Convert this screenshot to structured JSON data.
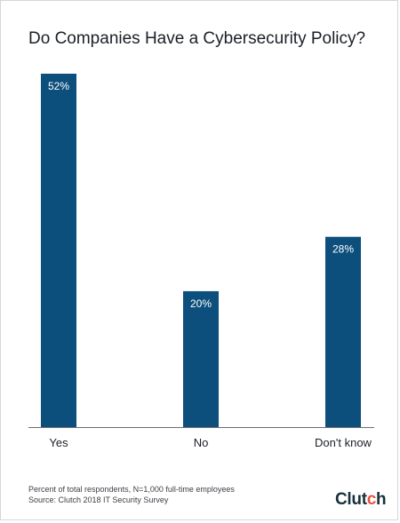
{
  "title": "Do Companies Have a Cybersecurity Policy?",
  "footnote": {
    "line1": "Percent of total respondents, N=1,000 full-time employees",
    "line2": "Source: Clutch 2018 IT Security Survey"
  },
  "brand": {
    "text_main": "Clut",
    "text_accent": "c",
    "text_end": "h",
    "accent_color": "#e8523d"
  },
  "colors": {
    "bar": "#0d4f7c",
    "axis": "#6b6f75",
    "label_inside": "#ffffff",
    "category_text": "#1b1f27"
  },
  "chart_data": {
    "type": "bar",
    "title": "Do Companies Have a Cybersecurity Policy?",
    "categories": [
      "Yes",
      "No",
      "Don't know"
    ],
    "values": [
      52,
      20,
      28
    ],
    "value_labels": [
      "52%",
      "20%",
      "28%"
    ],
    "ylim": [
      0,
      52
    ],
    "xlabel": "",
    "ylabel": "",
    "grid": false
  }
}
